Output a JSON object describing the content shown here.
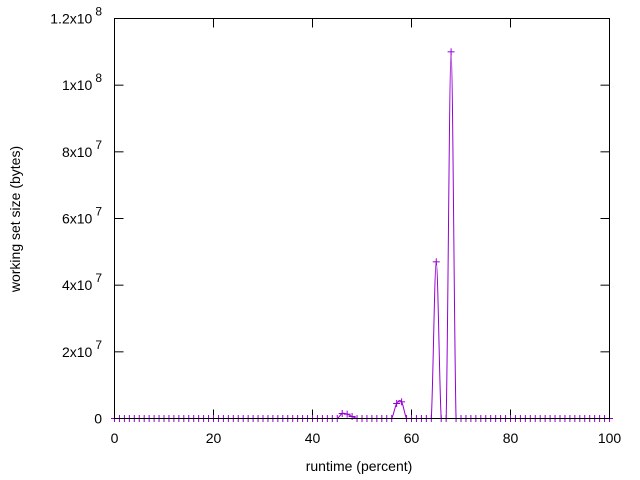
{
  "chart_data": {
    "type": "line",
    "title": "",
    "xlabel": "runtime (percent)",
    "ylabel": "working set size (bytes)",
    "xlim": [
      0,
      100
    ],
    "ylim": [
      0,
      120000000
    ],
    "grid": false,
    "legend": "none",
    "x_ticks": [
      {
        "value": 0,
        "label": "0"
      },
      {
        "value": 20,
        "label": "20"
      },
      {
        "value": 40,
        "label": "40"
      },
      {
        "value": 60,
        "label": "60"
      },
      {
        "value": 80,
        "label": "80"
      },
      {
        "value": 100,
        "label": "100"
      }
    ],
    "y_ticks": [
      {
        "value": 0,
        "mantissa": "0",
        "exponent": ""
      },
      {
        "value": 20000000,
        "mantissa": "2x10",
        "exponent": "7"
      },
      {
        "value": 40000000,
        "mantissa": "4x10",
        "exponent": "7"
      },
      {
        "value": 60000000,
        "mantissa": "6x10",
        "exponent": "7"
      },
      {
        "value": 80000000,
        "mantissa": "8x10",
        "exponent": "7"
      },
      {
        "value": 100000000,
        "mantissa": "1x10",
        "exponent": "8"
      },
      {
        "value": 120000000,
        "mantissa": "1.2x10",
        "exponent": "8"
      }
    ],
    "series": [
      {
        "color": "#9400d3",
        "marker": "+",
        "x": [
          0,
          1,
          2,
          3,
          4,
          5,
          6,
          7,
          8,
          9,
          10,
          11,
          12,
          13,
          14,
          15,
          16,
          17,
          18,
          19,
          20,
          21,
          22,
          23,
          24,
          25,
          26,
          27,
          28,
          29,
          30,
          31,
          32,
          33,
          34,
          35,
          36,
          37,
          38,
          39,
          40,
          41,
          42,
          43,
          44,
          45,
          46,
          47,
          48,
          49,
          50,
          51,
          52,
          53,
          54,
          55,
          56,
          57,
          58,
          59,
          60,
          61,
          62,
          63,
          64,
          65,
          66,
          67,
          68,
          69,
          70,
          71,
          72,
          73,
          74,
          75,
          76,
          77,
          78,
          79,
          80,
          81,
          82,
          83,
          84,
          85,
          86,
          87,
          88,
          89,
          90,
          91,
          92,
          93,
          94,
          95,
          96,
          97,
          98,
          99,
          100
        ],
        "y": [
          0,
          0,
          0,
          0,
          0,
          0,
          0,
          0,
          0,
          0,
          0,
          0,
          0,
          0,
          0,
          0,
          0,
          0,
          0,
          0,
          0,
          0,
          0,
          0,
          0,
          0,
          0,
          0,
          0,
          0,
          0,
          0,
          0,
          0,
          0,
          0,
          0,
          0,
          0,
          0,
          0,
          0,
          0,
          0,
          0,
          0,
          1500000,
          1300000,
          600000,
          0,
          0,
          0,
          0,
          0,
          0,
          0,
          0,
          4500000,
          5000000,
          0,
          0,
          0,
          0,
          0,
          0,
          47000000,
          0,
          0,
          110000000,
          0,
          0,
          0,
          0,
          0,
          0,
          0,
          0,
          0,
          0,
          0,
          0,
          0,
          0,
          0,
          0,
          0,
          0,
          0,
          0,
          0,
          0,
          0,
          0,
          0,
          0,
          0,
          0,
          0,
          0,
          0,
          0
        ]
      }
    ]
  }
}
